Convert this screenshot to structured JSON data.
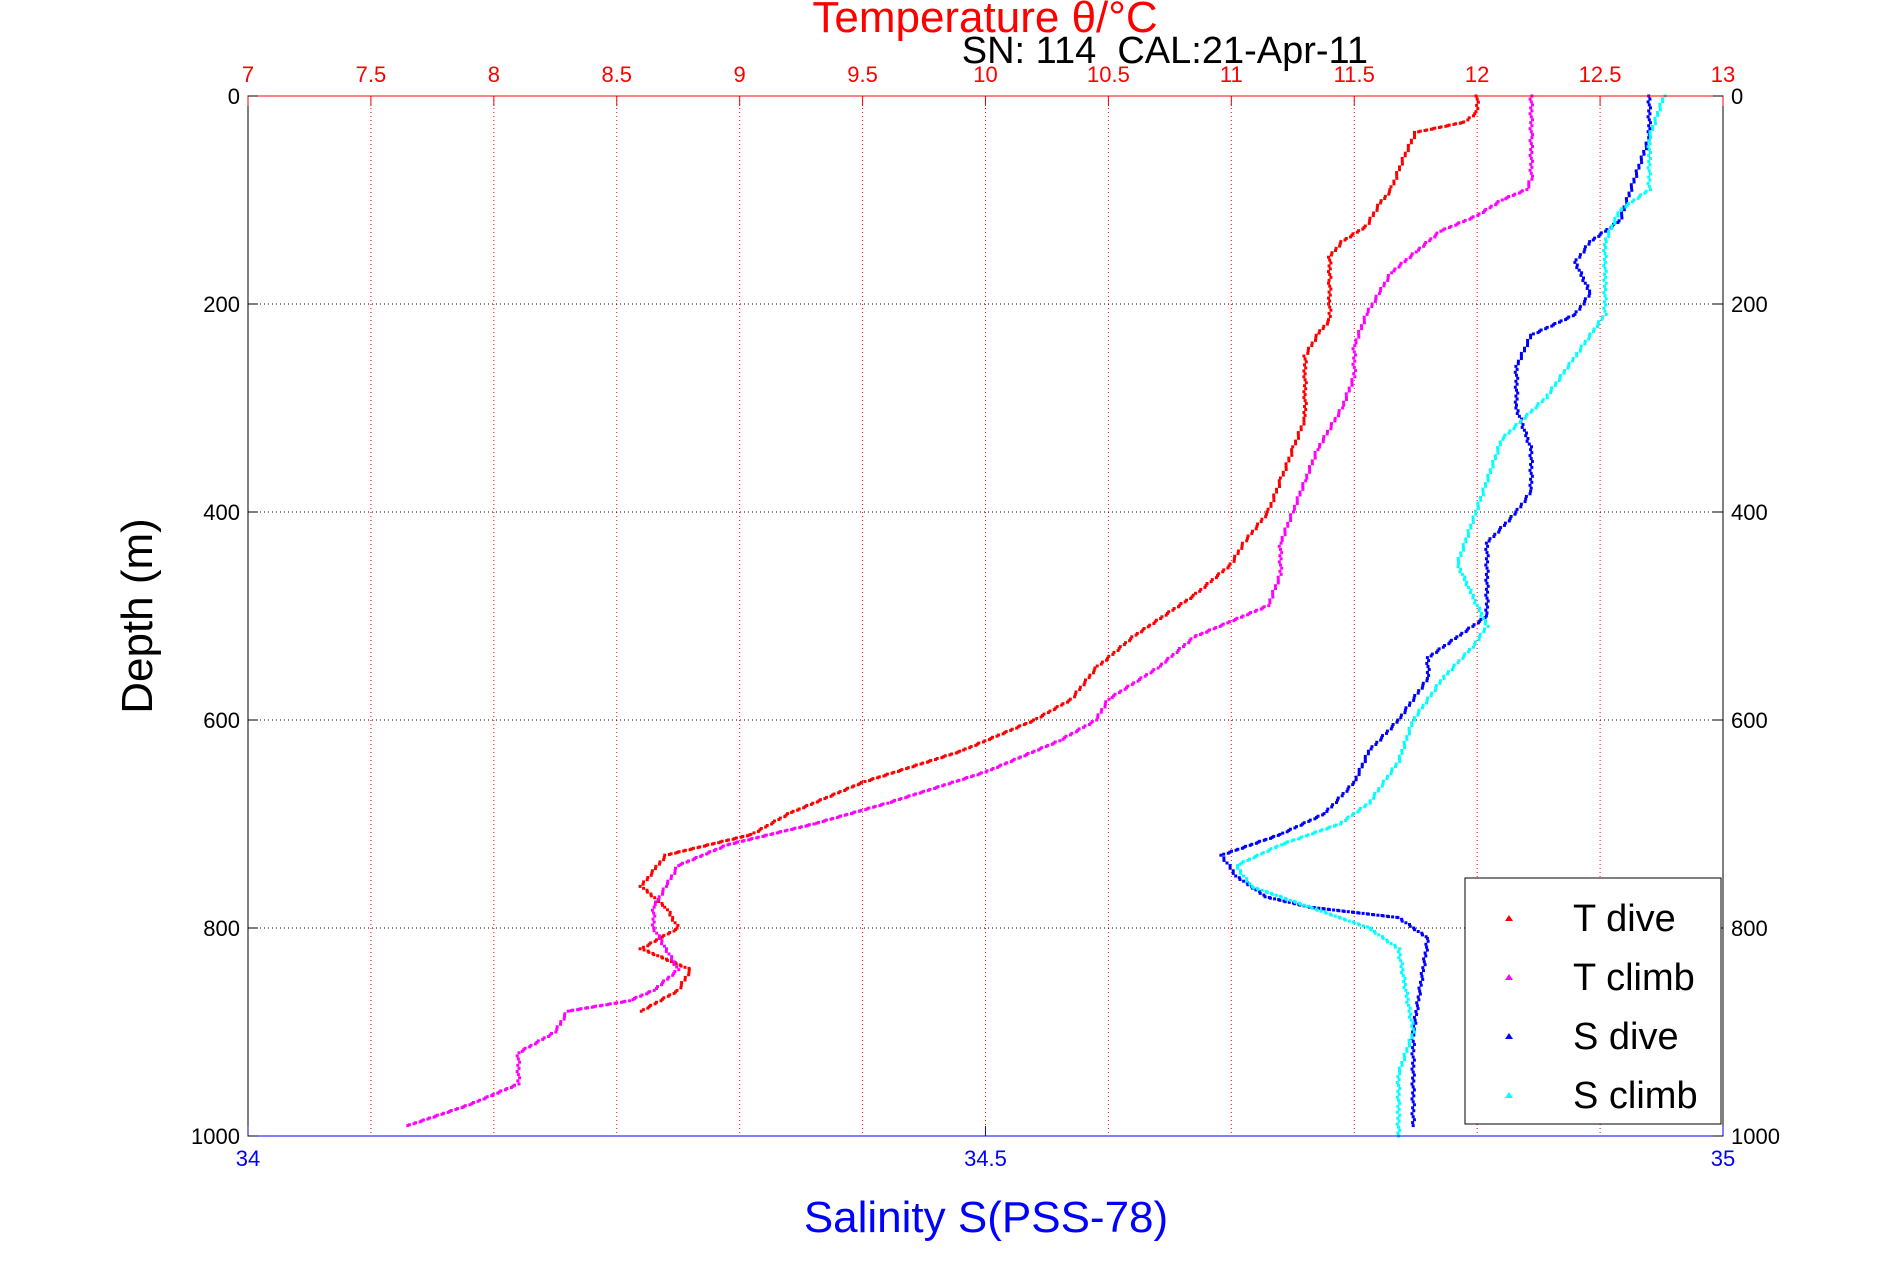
{
  "chart_data": {
    "type": "scatter",
    "title": "Temperature θ/°C",
    "annotation": "SN: 114  CAL:21-Apr-11",
    "xlabel": "Salinity S(PSS-78)",
    "ylabel": "Depth (m)",
    "temperature_axis": {
      "range": [
        7,
        13
      ],
      "ticks": [
        7,
        7.5,
        8,
        8.5,
        9,
        9.5,
        10,
        10.5,
        11,
        11.5,
        12,
        12.5,
        13
      ],
      "tick_labels": [
        "7",
        "7.5",
        "8",
        "8.5",
        "9",
        "9.5",
        "10",
        "10.5",
        "11",
        "11.5",
        "12",
        "12.5",
        "13"
      ],
      "color": "#ff0000"
    },
    "salinity_axis": {
      "range": [
        34,
        35
      ],
      "ticks": [
        34,
        34.5,
        35
      ],
      "tick_labels": [
        "34",
        "34.5",
        "35"
      ],
      "color": "#0000ff"
    },
    "depth_axis": {
      "range": [
        0,
        1000
      ],
      "reversed": true,
      "ticks": [
        0,
        200,
        400,
        600,
        800,
        1000
      ],
      "tick_labels": [
        "0",
        "200",
        "400",
        "600",
        "800",
        "1000"
      ]
    },
    "grid": true,
    "legend_position": "bottom-right",
    "series": [
      {
        "name": "T dive",
        "axis": "temperature",
        "color": "#ff0000",
        "depth": [
          0,
          15,
          25,
          35,
          60,
          90,
          105,
          125,
          140,
          155,
          180,
          200,
          215,
          230,
          250,
          270,
          290,
          310,
          340,
          370,
          400,
          430,
          450,
          480,
          520,
          550,
          580,
          600,
          630,
          660,
          690,
          710,
          730,
          745,
          760,
          780,
          800,
          820,
          840,
          860,
          880
        ],
        "values": [
          12.0,
          12.0,
          11.95,
          11.75,
          11.7,
          11.65,
          11.6,
          11.55,
          11.45,
          11.4,
          11.4,
          11.4,
          11.4,
          11.35,
          11.3,
          11.3,
          11.3,
          11.3,
          11.25,
          11.2,
          11.15,
          11.05,
          11.0,
          10.85,
          10.6,
          10.45,
          10.35,
          10.2,
          9.9,
          9.5,
          9.2,
          9.05,
          8.7,
          8.65,
          8.6,
          8.7,
          8.75,
          8.6,
          8.8,
          8.75,
          8.6
        ]
      },
      {
        "name": "T climb",
        "axis": "temperature",
        "color": "#ff00ff",
        "depth": [
          0,
          40,
          80,
          90,
          100,
          115,
          130,
          150,
          170,
          190,
          210,
          240,
          270,
          300,
          340,
          370,
          400,
          430,
          460,
          490,
          520,
          550,
          580,
          600,
          620,
          650,
          680,
          700,
          720,
          740,
          760,
          780,
          800,
          820,
          840,
          860,
          870,
          880,
          900,
          920,
          950,
          970,
          990
        ],
        "values": [
          12.22,
          12.22,
          12.22,
          12.2,
          12.1,
          12.0,
          11.85,
          11.75,
          11.65,
          11.6,
          11.55,
          11.5,
          11.5,
          11.45,
          11.35,
          11.3,
          11.25,
          11.2,
          11.2,
          11.15,
          10.85,
          10.7,
          10.5,
          10.45,
          10.3,
          10.0,
          9.6,
          9.3,
          8.95,
          8.75,
          8.7,
          8.65,
          8.65,
          8.7,
          8.75,
          8.65,
          8.55,
          8.3,
          8.25,
          8.1,
          8.1,
          7.9,
          7.65
        ]
      },
      {
        "name": "S dive",
        "axis": "salinity",
        "color": "#0000ff",
        "depth": [
          0,
          40,
          80,
          120,
          140,
          160,
          190,
          210,
          230,
          260,
          300,
          340,
          380,
          400,
          430,
          460,
          500,
          520,
          540,
          560,
          600,
          630,
          660,
          690,
          710,
          730,
          750,
          770,
          780,
          790,
          810,
          900,
          930,
          990
        ],
        "values": [
          34.95,
          34.95,
          34.94,
          34.93,
          34.91,
          34.9,
          34.91,
          34.9,
          34.87,
          34.86,
          34.86,
          34.87,
          34.87,
          34.86,
          34.84,
          34.84,
          34.84,
          34.82,
          34.8,
          34.8,
          34.78,
          34.76,
          34.75,
          34.73,
          34.7,
          34.66,
          34.67,
          34.69,
          34.72,
          34.78,
          34.8,
          34.79,
          34.79,
          34.79
        ]
      },
      {
        "name": "S climb",
        "axis": "salinity",
        "color": "#00ffff",
        "depth": [
          0,
          40,
          60,
          90,
          110,
          140,
          180,
          210,
          250,
          290,
          330,
          370,
          410,
          450,
          480,
          510,
          530,
          560,
          600,
          640,
          680,
          700,
          720,
          740,
          760,
          780,
          800,
          820,
          900,
          940,
          980,
          1000
        ],
        "values": [
          34.96,
          34.95,
          34.95,
          34.95,
          34.93,
          34.92,
          34.92,
          34.92,
          34.9,
          34.88,
          34.85,
          34.84,
          34.83,
          34.82,
          34.83,
          34.84,
          34.83,
          34.81,
          34.79,
          34.78,
          34.76,
          34.74,
          34.7,
          34.67,
          34.68,
          34.72,
          34.76,
          34.78,
          34.79,
          34.78,
          34.78,
          34.78
        ]
      }
    ]
  }
}
